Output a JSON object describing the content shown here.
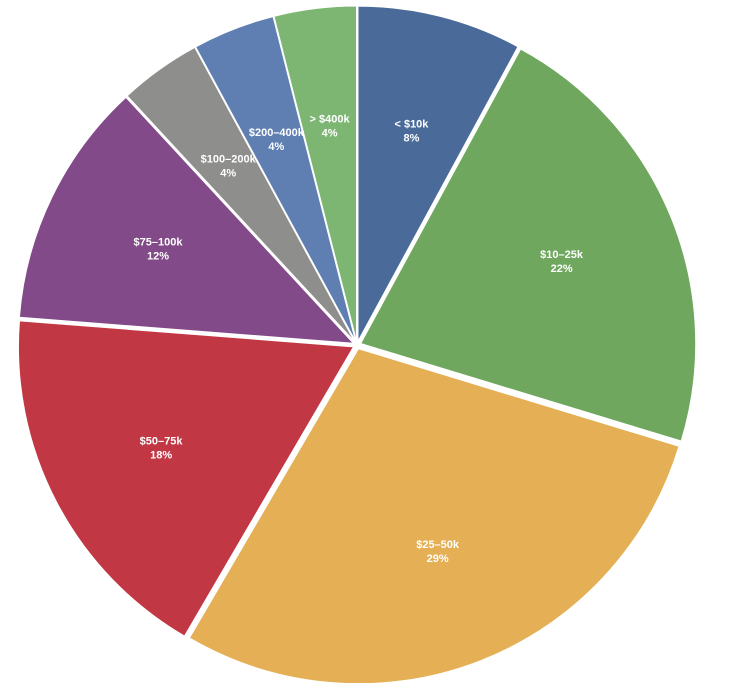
{
  "chart_data": {
    "type": "pie",
    "title": "",
    "start_angle_deg": 0,
    "direction": "clockwise",
    "exploded": true,
    "slices": [
      {
        "label": "< $10k",
        "value": 8,
        "display": "8%",
        "color": "#4A6A9A"
      },
      {
        "label": "$10–25k",
        "value": 22,
        "display": "22%",
        "color": "#6FA75E"
      },
      {
        "label": "$25–50k",
        "value": 29,
        "display": "29%",
        "color": "#E4AF55"
      },
      {
        "label": "$50–75k",
        "value": 18,
        "display": "18%",
        "color": "#C23744"
      },
      {
        "label": "$75–100k",
        "value": 12,
        "display": "12%",
        "color": "#824A88"
      },
      {
        "label": "$100–200k",
        "value": 4,
        "display": "4%",
        "color": "#8E8E8C"
      },
      {
        "label": "$200–400k",
        "value": 4,
        "display": "4%",
        "color": "#5F7FB3"
      },
      {
        "label": "> $400k",
        "value": 4,
        "display": "4%",
        "color": "#7DB673"
      }
    ]
  }
}
